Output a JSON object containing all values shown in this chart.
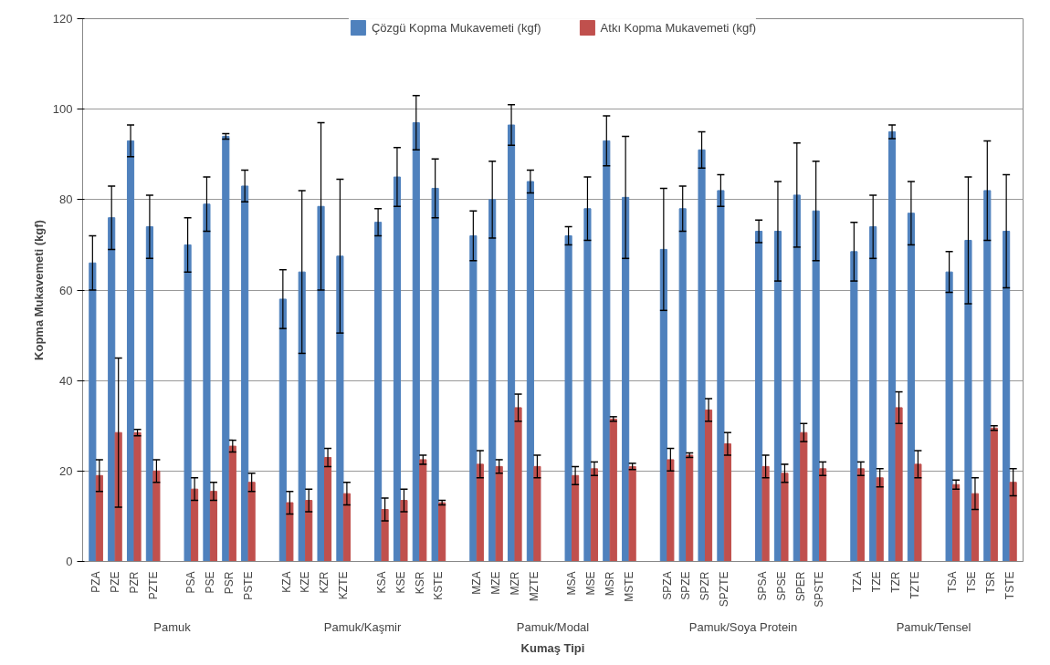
{
  "chart_data": {
    "type": "bar",
    "xlabel": "Kumaş Tipi",
    "ylabel": "Kopma Mukavemeti (kgf)",
    "categories": [
      "PZA",
      "PZE",
      "PZR",
      "PZTE",
      null,
      "PSA",
      "PSE",
      "PSR",
      "PSTE",
      null,
      "KZA",
      "KZE",
      "KZR",
      "KZTE",
      null,
      "KSA",
      "KSE",
      "KSR",
      "KSTE",
      null,
      "MZA",
      "MZE",
      "MZR",
      "MZTE",
      null,
      "MSA",
      "MSE",
      "MSR",
      "MSTE",
      null,
      "SPZA",
      "SPZE",
      "SPZR",
      "SPZTE",
      null,
      "SPSA",
      "SPSE",
      "SPER",
      "SPSTE",
      null,
      "TZA",
      "TZE",
      "TZR",
      "TZTE",
      null,
      "TSA",
      "TSE",
      "TSR",
      "TSTE"
    ],
    "series": [
      {
        "name": "Çözgü Kopma Mukavemeti (kgf)",
        "color": "#4f81bd",
        "values": [
          66,
          76,
          93,
          74,
          null,
          70,
          79,
          94,
          83,
          null,
          58,
          64,
          78.5,
          67.5,
          null,
          75,
          85,
          97,
          82.5,
          null,
          72,
          80,
          96.5,
          84,
          null,
          72,
          78,
          93,
          80.5,
          null,
          69,
          78,
          91,
          82,
          null,
          73,
          73,
          81,
          77.5,
          null,
          68.5,
          74,
          95,
          77,
          null,
          64,
          71,
          82,
          73
        ],
        "errors": [
          6,
          7,
          3.5,
          7,
          null,
          6,
          6,
          0.6,
          3.5,
          null,
          6.5,
          18,
          18.5,
          17,
          null,
          3,
          6.5,
          6,
          6.5,
          null,
          5.5,
          8.5,
          4.5,
          2.5,
          null,
          2,
          7,
          5.5,
          13.5,
          null,
          13.5,
          5,
          4,
          3.5,
          null,
          2.5,
          11,
          11.5,
          11,
          null,
          6.5,
          7,
          1.5,
          7,
          null,
          4.5,
          14,
          11,
          12.5
        ]
      },
      {
        "name": "Atkı Kopma Mukavemeti (kgf)",
        "color": "#c0504d",
        "values": [
          19,
          28.5,
          28.5,
          20,
          null,
          16,
          15.5,
          25.5,
          17.5,
          null,
          13,
          13.5,
          23,
          15,
          null,
          11.5,
          13.5,
          22.5,
          13,
          null,
          21.5,
          21,
          34,
          21,
          null,
          19,
          20.5,
          31.5,
          21,
          null,
          22.5,
          23.5,
          33.5,
          26,
          null,
          21,
          19.5,
          28.5,
          20.5,
          null,
          20.5,
          18.5,
          34,
          21.5,
          null,
          17,
          15,
          29.5,
          17.5
        ],
        "errors": [
          3.5,
          16.5,
          0.7,
          2.5,
          null,
          2.5,
          2,
          1.3,
          2,
          null,
          2.5,
          2.5,
          2,
          2.5,
          null,
          2.5,
          2.5,
          1,
          0.5,
          null,
          3,
          1.5,
          3,
          2.5,
          null,
          2,
          1.5,
          0.5,
          0.7,
          null,
          2.5,
          0.5,
          2.5,
          2.5,
          null,
          2.5,
          2,
          2,
          1.5,
          null,
          1.5,
          2,
          3.5,
          3,
          null,
          1,
          3.5,
          0.5,
          3
        ]
      }
    ],
    "annotations": [
      "Pamuk",
      "Pamuk/Kaşmir",
      "Pamuk/Modal",
      "Pamuk/Soya Protein",
      "Pamuk/Tensel"
    ],
    "ylim": [
      0,
      120
    ],
    "yticks": [
      0,
      20,
      40,
      60,
      80,
      100,
      120
    ],
    "grid": "y",
    "legend": "top"
  }
}
